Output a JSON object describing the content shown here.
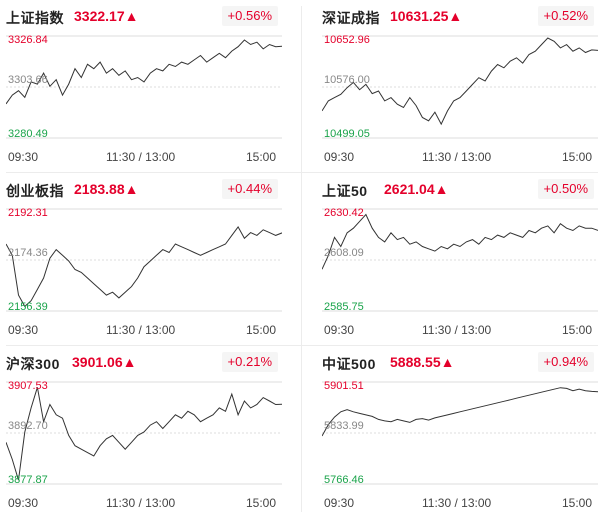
{
  "colors": {
    "up": "#e4002b",
    "down": "#1aa34a",
    "line": "#333333",
    "grid": "#dddddd"
  },
  "panels": [
    {
      "name": "上证指数",
      "price": "3322.17▲",
      "change": "+0.56%",
      "y_high": "3326.84",
      "y_mid": "3303.66",
      "y_low": "3280.49",
      "x_labels": [
        "09:30",
        "11:30 / 13:00",
        "15:00"
      ],
      "chart_data": {
        "type": "line",
        "ylim": [
          3280.49,
          3326.84
        ],
        "values": [
          3296,
          3300,
          3302,
          3299,
          3306,
          3305,
          3310,
          3304,
          3307,
          3300,
          3305,
          3312,
          3308,
          3314,
          3312,
          3315,
          3310,
          3312,
          3309,
          3311,
          3307,
          3308,
          3306,
          3310,
          3312,
          3311,
          3314,
          3313,
          3315,
          3314,
          3316,
          3318,
          3315,
          3317,
          3319,
          3317,
          3320,
          3322,
          3325,
          3323,
          3324,
          3321,
          3323,
          3322,
          3322.17
        ]
      }
    },
    {
      "name": "深证成指",
      "price": "10631.25▲",
      "change": "+0.52%",
      "y_high": "10652.96",
      "y_mid": "10576.00",
      "y_low": "10499.05",
      "x_labels": [
        "09:30",
        "11:30 / 13:00",
        "15:00"
      ],
      "chart_data": {
        "type": "line",
        "ylim": [
          10499.05,
          10652.96
        ],
        "values": [
          10540,
          10555,
          10560,
          10565,
          10575,
          10583,
          10572,
          10580,
          10566,
          10570,
          10555,
          10560,
          10550,
          10545,
          10560,
          10548,
          10530,
          10525,
          10538,
          10520,
          10540,
          10555,
          10560,
          10570,
          10580,
          10590,
          10585,
          10600,
          10610,
          10605,
          10615,
          10620,
          10612,
          10625,
          10630,
          10640,
          10650,
          10645,
          10635,
          10640,
          10630,
          10635,
          10628,
          10632,
          10631.25
        ]
      }
    },
    {
      "name": "创业板指",
      "price": "2183.88▲",
      "change": "+0.44%",
      "y_high": "2192.31",
      "y_mid": "2174.36",
      "y_low": "2156.39",
      "x_labels": [
        "09:30",
        "11:30 / 13:00",
        "15:00"
      ],
      "chart_data": {
        "type": "line",
        "ylim": [
          2156.39,
          2192.31
        ],
        "values": [
          2180,
          2176,
          2162,
          2158,
          2160,
          2164,
          2168,
          2175,
          2178,
          2176,
          2174,
          2171,
          2170,
          2168,
          2166,
          2164,
          2162,
          2163,
          2161,
          2163,
          2165,
          2168,
          2172,
          2174,
          2176,
          2178,
          2177,
          2180,
          2179,
          2178,
          2177,
          2176,
          2177,
          2178,
          2179,
          2180,
          2183,
          2186,
          2182,
          2184,
          2183,
          2185,
          2184,
          2183,
          2183.88
        ]
      }
    },
    {
      "name": "上证50",
      "price": "2621.04▲",
      "change": "+0.50%",
      "y_high": "2630.42",
      "y_mid": "2608.09",
      "y_low": "2585.75",
      "x_labels": [
        "09:30",
        "11:30 / 13:00",
        "15:00"
      ],
      "chart_data": {
        "type": "line",
        "ylim": [
          2585.75,
          2630.42
        ],
        "values": [
          2604,
          2610,
          2618,
          2614,
          2620,
          2622,
          2625,
          2628,
          2622,
          2618,
          2616,
          2620,
          2617,
          2618,
          2615,
          2616,
          2614,
          2613,
          2612,
          2614,
          2613,
          2615,
          2614,
          2616,
          2617,
          2615,
          2618,
          2617,
          2619,
          2618,
          2620,
          2619,
          2618,
          2621,
          2620,
          2622,
          2623,
          2620,
          2624,
          2622,
          2621,
          2623,
          2622,
          2622,
          2621.04
        ]
      }
    },
    {
      "name": "沪深300",
      "price": "3901.06▲",
      "change": "+0.21%",
      "y_high": "3907.53",
      "y_mid": "3892.70",
      "y_low": "3877.87",
      "x_labels": [
        "09:30",
        "11:30 / 13:00",
        "15:00"
      ],
      "chart_data": {
        "type": "line",
        "ylim": [
          3877.87,
          3907.53
        ],
        "values": [
          3890,
          3885,
          3879,
          3893,
          3900,
          3906,
          3896,
          3901,
          3898,
          3897,
          3892,
          3889,
          3888,
          3887,
          3886,
          3889,
          3891,
          3892,
          3890,
          3888,
          3890,
          3892,
          3893,
          3895,
          3896,
          3894,
          3896,
          3898,
          3897,
          3899,
          3898,
          3896,
          3897,
          3898,
          3900,
          3899,
          3904,
          3898,
          3902,
          3900,
          3901,
          3903,
          3902,
          3901,
          3901.06
        ]
      }
    },
    {
      "name": "中证500",
      "price": "5888.55▲",
      "change": "+0.94%",
      "y_high": "5901.51",
      "y_mid": "5833.99",
      "y_low": "5766.46",
      "x_labels": [
        "09:30",
        "11:30 / 13:00",
        "15:00"
      ],
      "chart_data": {
        "type": "line",
        "ylim": [
          5766.46,
          5901.51
        ],
        "values": [
          5830,
          5845,
          5855,
          5862,
          5865,
          5862,
          5860,
          5858,
          5856,
          5852,
          5850,
          5849,
          5852,
          5850,
          5848,
          5852,
          5853,
          5851,
          5854,
          5856,
          5858,
          5860,
          5862,
          5864,
          5866,
          5868,
          5870,
          5872,
          5874,
          5876,
          5878,
          5880,
          5882,
          5884,
          5886,
          5888,
          5890,
          5892,
          5894,
          5893,
          5890,
          5892,
          5890,
          5889,
          5888.55
        ]
      }
    }
  ]
}
